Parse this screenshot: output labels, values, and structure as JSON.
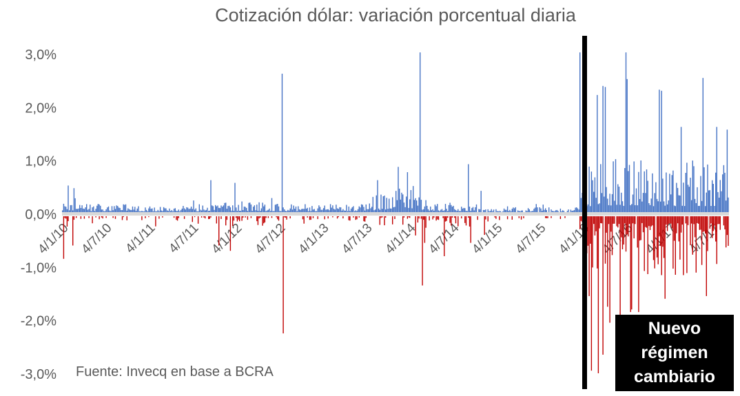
{
  "title": "Cotización dólar: variación porcentual diaria",
  "source_note": "Fuente: Invecq en base a BCRA",
  "annotation": {
    "label": "Nuevo régimen cambiario"
  },
  "chart_data": {
    "type": "bar",
    "title": "Cotización dólar: variación porcentual diaria",
    "xlabel": "",
    "ylabel": "",
    "y_tick_labels": [
      "3,0%",
      "2,0%",
      "1,0%",
      "0,0%",
      "-1,0%",
      "-2,0%",
      "-3,0%"
    ],
    "y_tick_values": [
      3,
      2,
      1,
      0,
      -1,
      -2,
      -3
    ],
    "ylim": [
      -3.3,
      3.3
    ],
    "x_tick_labels": [
      "4/1/10",
      "4/7/10",
      "4/1/11",
      "4/7/11",
      "4/1/12",
      "4/7/12",
      "4/1/13",
      "4/7/13",
      "4/1/14",
      "4/7/14",
      "4/1/15",
      "4/7/15",
      "4/1/16",
      "4/7/16",
      "4/1/17",
      "4/7/17"
    ],
    "grid": false,
    "legend": false,
    "bar_colors": {
      "positive": "#4472C4",
      "negative": "#C00000"
    },
    "axis_band_color": "#D9D9D9",
    "text_color": "#595959",
    "event_line": {
      "x_fraction": 0.784,
      "color": "#000000",
      "label": "Nuevo régimen cambiario"
    },
    "n_bars": 580,
    "seed": 7,
    "volatility_periods": [
      {
        "from": 0.0,
        "to": 0.025,
        "pos_amp": 0.22,
        "pos_max": 0.5,
        "neg_freq": 0.55,
        "neg_amp": 0.18,
        "neg_max": 0.6
      },
      {
        "from": 0.025,
        "to": 0.1,
        "pos_amp": 0.12,
        "pos_max": 0.35,
        "neg_freq": 0.4,
        "neg_amp": 0.1,
        "neg_max": 0.3
      },
      {
        "from": 0.1,
        "to": 0.21,
        "pos_amp": 0.1,
        "pos_max": 0.3,
        "neg_freq": 0.3,
        "neg_amp": 0.08,
        "neg_max": 0.25
      },
      {
        "from": 0.21,
        "to": 0.315,
        "pos_amp": 0.15,
        "pos_max": 0.6,
        "neg_freq": 0.5,
        "neg_amp": 0.15,
        "neg_max": 0.7
      },
      {
        "from": 0.315,
        "to": 0.345,
        "pos_amp": 0.13,
        "pos_max": 0.4,
        "neg_freq": 0.5,
        "neg_amp": 0.12,
        "neg_max": 0.45
      },
      {
        "from": 0.345,
        "to": 0.46,
        "pos_amp": 0.12,
        "pos_max": 0.35,
        "neg_freq": 0.35,
        "neg_amp": 0.08,
        "neg_max": 0.3
      },
      {
        "from": 0.46,
        "to": 0.53,
        "pos_amp": 0.2,
        "pos_amp_end": 0.5,
        "pos_max": 0.9,
        "neg_freq": 0.3,
        "neg_amp": 0.12,
        "neg_max": 0.4
      },
      {
        "from": 0.53,
        "to": 0.55,
        "pos_amp": 0.3,
        "pos_max": 0.8,
        "neg_freq": 0.6,
        "neg_amp": 0.28,
        "neg_max": 0.6
      },
      {
        "from": 0.55,
        "to": 0.615,
        "pos_amp": 0.14,
        "pos_max": 0.5,
        "neg_freq": 0.5,
        "neg_amp": 0.16,
        "neg_max": 0.75
      },
      {
        "from": 0.615,
        "to": 0.7,
        "pos_amp": 0.09,
        "pos_max": 0.25,
        "neg_freq": 0.3,
        "neg_amp": 0.07,
        "neg_max": 0.35
      },
      {
        "from": 0.7,
        "to": 0.775,
        "pos_amp": 0.07,
        "pos_max": 0.18,
        "neg_freq": 0.25,
        "neg_amp": 0.05,
        "neg_max": 0.15
      },
      {
        "from": 0.775,
        "to": 0.785,
        "pos_amp": 0.3,
        "pos_max": 0.7,
        "neg_freq": 0.3,
        "neg_amp": 0.1,
        "neg_max": 0.3
      },
      {
        "from": 0.785,
        "to": 1.001,
        "pos_amp": 0.75,
        "pos_max": 1.6,
        "neg_freq": 0.92,
        "neg_amp": 0.85,
        "neg_max": 2.3
      }
    ],
    "notable_spikes": [
      {
        "t": 0.002,
        "value": -0.8
      },
      {
        "t": 0.008,
        "value": 0.5
      },
      {
        "t": 0.015,
        "value": -0.55
      },
      {
        "t": 0.018,
        "value": 0.45
      },
      {
        "t": 0.223,
        "value": 0.6
      },
      {
        "t": 0.235,
        "value": -0.55
      },
      {
        "t": 0.251,
        "value": -0.65
      },
      {
        "t": 0.258,
        "value": 0.55
      },
      {
        "t": 0.329,
        "value": 2.6
      },
      {
        "t": 0.3312,
        "value": -2.2
      },
      {
        "t": 0.472,
        "value": 0.6
      },
      {
        "t": 0.503,
        "value": 0.85
      },
      {
        "t": 0.518,
        "value": 0.75
      },
      {
        "t": 0.536,
        "value": 3.0
      },
      {
        "t": 0.54,
        "value": -1.3
      },
      {
        "t": 0.5435,
        "value": -0.5
      },
      {
        "t": 0.572,
        "value": -0.75
      },
      {
        "t": 0.608,
        "value": 0.9
      },
      {
        "t": 0.612,
        "value": -0.5
      },
      {
        "t": 0.628,
        "value": 0.4
      },
      {
        "t": 0.632,
        "value": -0.35
      },
      {
        "t": 0.776,
        "value": 3.0
      },
      {
        "t": 0.789,
        "value": -1.5
      },
      {
        "t": 0.793,
        "value": -2.9
      },
      {
        "t": 0.802,
        "value": 2.2
      },
      {
        "t": 0.8035,
        "value": -2.95
      },
      {
        "t": 0.81,
        "value": 2.37
      },
      {
        "t": 0.8095,
        "value": -2.6
      },
      {
        "t": 0.8135,
        "value": 2.35
      },
      {
        "t": 0.8165,
        "value": -1.7
      },
      {
        "t": 0.82,
        "value": -2.0
      },
      {
        "t": 0.844,
        "value": 3.0
      },
      {
        "t": 0.8465,
        "value": 2.5
      },
      {
        "t": 0.851,
        "value": -1.8
      },
      {
        "t": 0.854,
        "value": -1.75
      },
      {
        "t": 0.863,
        "value": -1.8
      },
      {
        "t": 0.895,
        "value": 2.3
      },
      {
        "t": 0.899,
        "value": 2.28
      },
      {
        "t": 0.9035,
        "value": -1.55
      },
      {
        "t": 0.928,
        "value": 1.6
      },
      {
        "t": 0.961,
        "value": 2.52
      },
      {
        "t": 0.9655,
        "value": -1.5
      },
      {
        "t": 0.981,
        "value": 1.6
      },
      {
        "t": 0.996,
        "value": 1.55
      }
    ]
  }
}
